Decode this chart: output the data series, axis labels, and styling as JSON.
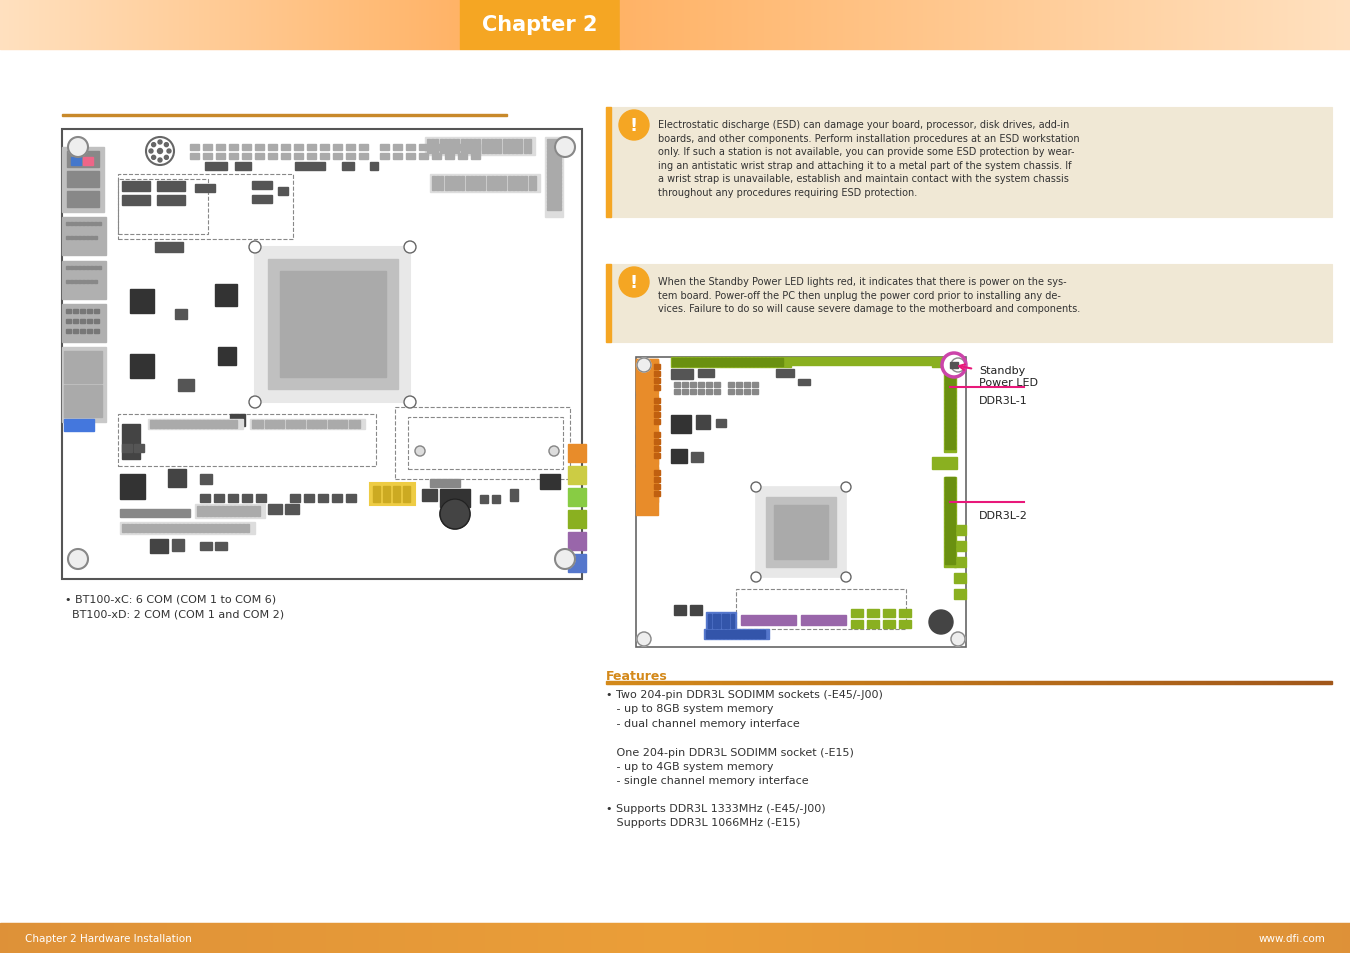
{
  "page_bg": "#ffffff",
  "header_orange": "#f5a623",
  "header_title": "Chapter 2",
  "footer_text_left": "Chapter 2 Hardware Installation",
  "footer_text_right": "www.dfi.com",
  "orange_line_color": "#c8892a",
  "warning_bg": "#f0e8d5",
  "warning_border": "#d4b896",
  "warning_orange": "#f5a623",
  "warning_text1": "Electrostatic discharge (ESD) can damage your board, processor, disk drives, add-in\nboards, and other components. Perform installation procedures at an ESD workstation\nonly. If such a station is not available, you can provide some ESD protection by wear-\ning an antistatic wrist strap and attaching it to a metal part of the system chassis. If\na wrist strap is unavailable, establish and maintain contact with the system chassis\nthroughout any procedures requiring ESD protection.",
  "warning_text2": "When the Standby Power LED lights red, it indicates that there is power on the sys-\ntem board. Power-off the PC then unplug the power cord prior to installing any de-\nvices. Failure to do so will cause severe damage to the motherboard and components.",
  "features_color": "#d4891a",
  "features_title": "Features",
  "features_text1": "• Two 204-pin DDR3L SODIMM sockets (-E45/-J00)\n   - up to 8GB system memory\n   - dual channel memory interface\n\n   One 204-pin DDR3L SODIMM socket (-E15)\n   - up to 4GB system memory\n   - single channel memory interface",
  "features_text2": "• Supports DDR3L 1333MHz (-E45/-J00)\n   Supports DDR3L 1066MHz (-E15)",
  "bottom_note": "• BT100-xC: 6 COM (COM 1 to COM 6)\n  BT100-xD: 2 COM (COM 1 and COM 2)",
  "label_standby": "Standby\nPower LED",
  "label_ddr1": "DDR3L-1",
  "label_ddr2": "DDR3L-2",
  "orange_comp": "#e88c2a",
  "green_comp": "#8ab020",
  "purple_comp": "#9966aa",
  "blue_comp": "#5577cc",
  "pink_arrow": "#e8187a",
  "gray_dark": "#555555",
  "gray_med": "#999999",
  "gray_light": "#cccccc",
  "black_chip": "#333333",
  "legend_colors": [
    "#e88c2a",
    "#cccc44",
    "#88cc44",
    "#8ab020",
    "#9966aa",
    "#5577cc"
  ]
}
